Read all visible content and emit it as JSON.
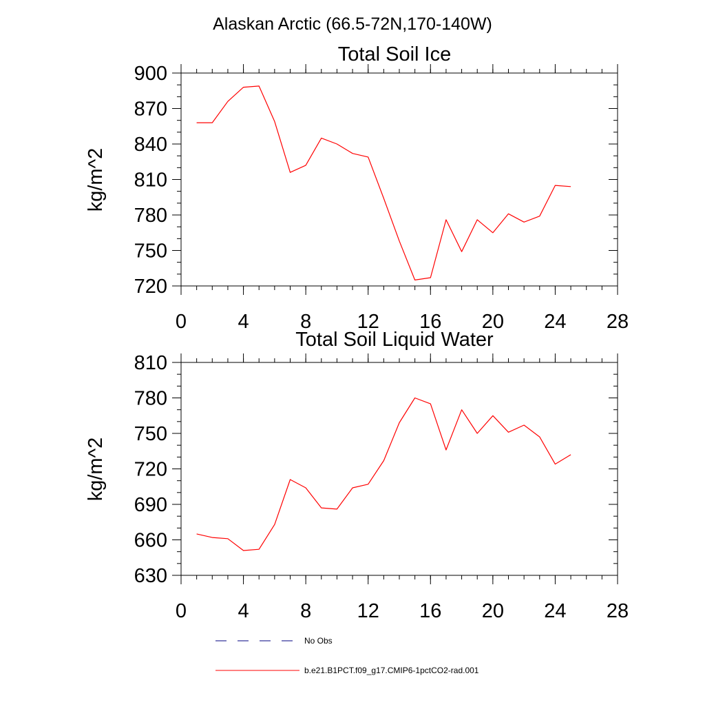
{
  "suptitle": "Alaskan Arctic (66.5-72N,170-140W)",
  "series_color": "#ff0000",
  "obs_color": "#000080",
  "chart_data": [
    {
      "type": "line",
      "title": "Total Soil Ice",
      "ylabel": "kg/m^2",
      "xlim": [
        0,
        28
      ],
      "ylim": [
        720,
        900
      ],
      "xticks": [
        0,
        4,
        8,
        12,
        16,
        20,
        24,
        28
      ],
      "yticks": [
        720,
        750,
        780,
        810,
        840,
        870,
        900
      ],
      "series": [
        {
          "name": "b.e21.B1PCT.f09_g17.CMIP6-1pctCO2-rad.001",
          "x": [
            1,
            2,
            3,
            4,
            5,
            6,
            7,
            8,
            9,
            10,
            11,
            12,
            13,
            14,
            15,
            16,
            17,
            18,
            19,
            20,
            21,
            22,
            23,
            24,
            25
          ],
          "y": [
            858,
            858,
            876,
            888,
            889,
            859,
            816,
            822,
            845,
            840,
            832,
            829,
            794,
            758,
            725,
            727,
            776,
            749,
            776,
            765,
            781,
            774,
            779,
            805,
            804
          ]
        }
      ]
    },
    {
      "type": "line",
      "title": "Total Soil Liquid Water",
      "ylabel": "kg/m^2",
      "xlim": [
        0,
        28
      ],
      "ylim": [
        630,
        810
      ],
      "xticks": [
        0,
        4,
        8,
        12,
        16,
        20,
        24,
        28
      ],
      "yticks": [
        630,
        660,
        690,
        720,
        750,
        780,
        810
      ],
      "series": [
        {
          "name": "b.e21.B1PCT.f09_g17.CMIP6-1pctCO2-rad.001",
          "x": [
            1,
            2,
            3,
            4,
            5,
            6,
            7,
            8,
            9,
            10,
            11,
            12,
            13,
            14,
            15,
            16,
            17,
            18,
            19,
            20,
            21,
            22,
            23,
            24,
            25
          ],
          "y": [
            665,
            662,
            661,
            651,
            652,
            673,
            711,
            704,
            687,
            686,
            704,
            707,
            727,
            759,
            780,
            775,
            736,
            770,
            750,
            765,
            751,
            757,
            747,
            724,
            732
          ]
        }
      ]
    }
  ],
  "legend": [
    {
      "label": "No Obs",
      "style": "dashed"
    },
    {
      "label": "b.e21.B1PCT.f09_g17.CMIP6-1pctCO2-rad.001",
      "style": "solid"
    }
  ]
}
